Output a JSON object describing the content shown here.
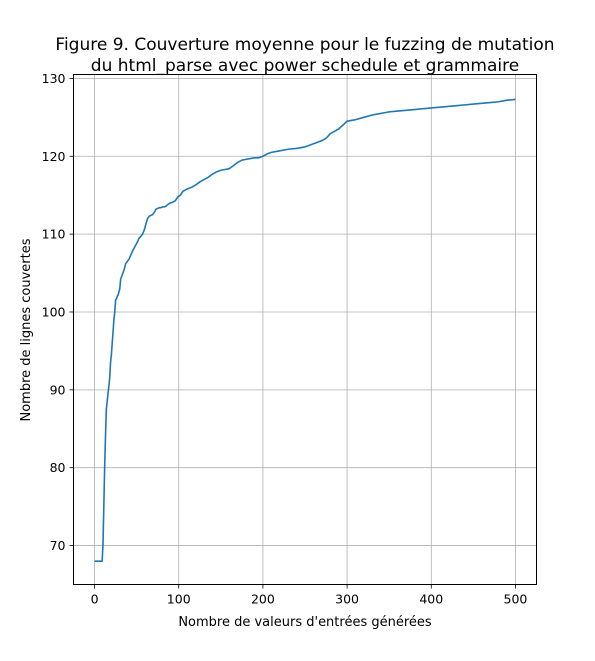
{
  "chart_data": {
    "type": "line",
    "title_lines": [
      "Figure 9. Couverture moyenne pour le fuzzing de mutation",
      "du html_parse avec power schedule et grammaire"
    ],
    "xlabel": "Nombre de valeurs d'entrées générées",
    "ylabel": "Nombre de lignes couvertes",
    "xlim": [
      -25,
      525
    ],
    "ylim": [
      65,
      130.5
    ],
    "xticks": [
      0,
      100,
      200,
      300,
      400,
      500
    ],
    "yticks": [
      70,
      80,
      90,
      100,
      110,
      120,
      130
    ],
    "grid": true,
    "line_color": "#1f77b4",
    "series": [
      {
        "x": [
          0,
          9,
          10,
          11,
          12,
          13,
          14,
          15,
          16,
          17,
          18,
          19,
          20,
          21,
          22,
          23,
          24,
          25,
          26,
          27,
          28,
          29,
          30,
          31,
          33,
          35,
          37,
          39,
          41,
          43,
          45,
          47,
          49,
          51,
          53,
          55,
          57,
          59,
          61,
          63,
          65,
          67,
          69,
          71,
          73,
          75,
          77,
          79,
          81,
          83,
          85,
          87,
          90,
          93,
          96,
          99,
          102,
          105,
          110,
          115,
          120,
          125,
          130,
          135,
          140,
          145,
          150,
          155,
          160,
          165,
          170,
          175,
          180,
          185,
          190,
          195,
          200,
          205,
          210,
          220,
          230,
          240,
          250,
          255,
          260,
          265,
          270,
          275,
          280,
          285,
          290,
          295,
          300,
          310,
          320,
          330,
          340,
          345,
          350,
          360,
          370,
          380,
          390,
          400,
          410,
          420,
          430,
          440,
          450,
          460,
          470,
          480,
          485,
          490,
          500
        ],
        "y": [
          68,
          68,
          70,
          75,
          80,
          84,
          87.5,
          88.5,
          89.5,
          90.5,
          91.5,
          93.5,
          94.5,
          96,
          97.5,
          99,
          100,
          101.5,
          101.7,
          102,
          102.2,
          102.6,
          103,
          104.2,
          104.8,
          105.4,
          106.2,
          106.5,
          106.8,
          107.3,
          107.8,
          108.2,
          108.6,
          109,
          109.5,
          109.7,
          110,
          110.5,
          111.3,
          112,
          112.3,
          112.4,
          112.5,
          112.8,
          113.2,
          113.3,
          113.4,
          113.4,
          113.5,
          113.5,
          113.6,
          113.8,
          114,
          114.1,
          114.3,
          114.8,
          115,
          115.5,
          115.8,
          116,
          116.3,
          116.7,
          117,
          117.3,
          117.7,
          118,
          118.2,
          118.3,
          118.4,
          118.8,
          119.2,
          119.5,
          119.6,
          119.7,
          119.8,
          119.8,
          120,
          120.3,
          120.5,
          120.7,
          120.9,
          121,
          121.2,
          121.4,
          121.6,
          121.8,
          122,
          122.3,
          122.9,
          123.2,
          123.5,
          124,
          124.5,
          124.7,
          125,
          125.3,
          125.5,
          125.6,
          125.7,
          125.8,
          125.9,
          126,
          126.1,
          126.2,
          126.3,
          126.4,
          126.5,
          126.6,
          126.7,
          126.8,
          126.9,
          127,
          127.1,
          127.2,
          127.3
        ]
      }
    ]
  }
}
